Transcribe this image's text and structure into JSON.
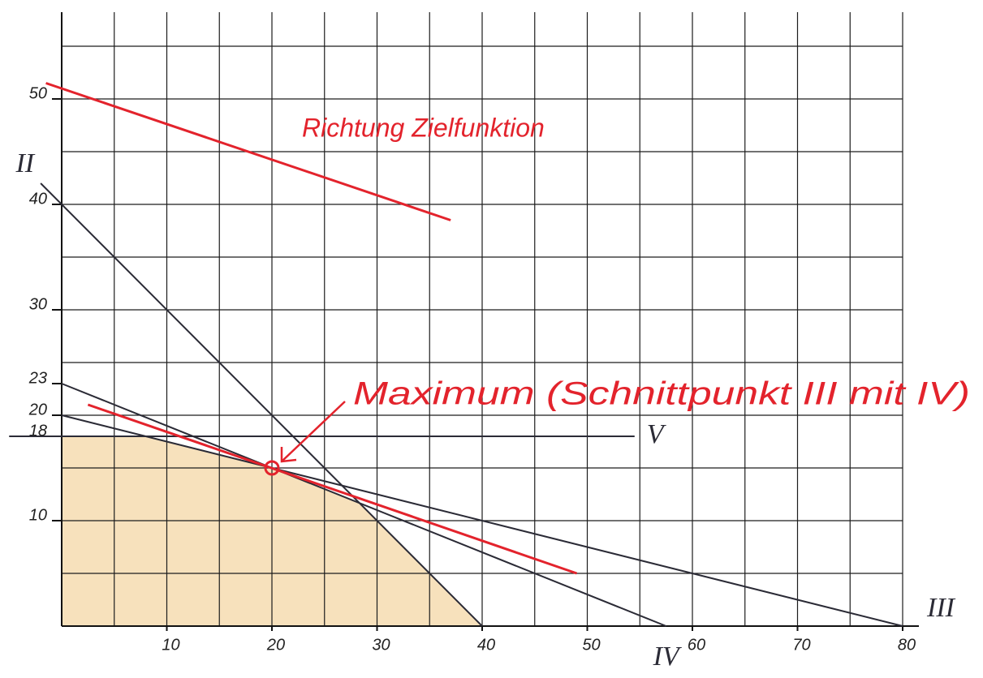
{
  "chart_data": {
    "type": "line",
    "xlim": [
      0,
      80
    ],
    "ylim": [
      0,
      55
    ],
    "xticks": [
      10,
      20,
      30,
      40,
      50,
      60,
      70,
      80
    ],
    "yticks": [
      10,
      18,
      20,
      23,
      30,
      40,
      50
    ],
    "xgrid": [
      0,
      5,
      10,
      15,
      20,
      25,
      30,
      35,
      40,
      45,
      50,
      55,
      60,
      65,
      70,
      75,
      80
    ],
    "ygrid": [
      0,
      5,
      10,
      15,
      20,
      25,
      30,
      35,
      40,
      45,
      50,
      55
    ],
    "grid": true,
    "feasible_region": {
      "color": "#f6dcb0",
      "x": [
        0,
        0,
        8,
        20,
        28.33,
        40
      ],
      "y": [
        0,
        18,
        18,
        15,
        11.67,
        0
      ]
    },
    "series": [
      {
        "name": "II",
        "color": "#2b2b36",
        "x": [
          -2,
          40
        ],
        "values": [
          42,
          0
        ]
      },
      {
        "name": "III",
        "color": "#2b2b36",
        "x": [
          0,
          80
        ],
        "values": [
          20,
          0
        ]
      },
      {
        "name": "IV",
        "color": "#2b2b36",
        "x": [
          0,
          57.5
        ],
        "values": [
          23,
          0
        ]
      },
      {
        "name": "V",
        "color": "#2b2b36",
        "x": [
          -5,
          54.5
        ],
        "values": [
          18,
          18
        ]
      },
      {
        "color": "#e3232c",
        "x": [
          2.5,
          49
        ],
        "values": [
          21,
          5
        ]
      },
      {
        "name": "Richtung Zielfunktion",
        "color": "#e3232c",
        "x": [
          -1.5,
          37
        ],
        "values": [
          51.5,
          38.5
        ]
      }
    ],
    "maximum": {
      "text": "Maximum (Schnittpunkt III mit IV)",
      "x": 20,
      "y": 15,
      "color": "#e3232c"
    }
  }
}
